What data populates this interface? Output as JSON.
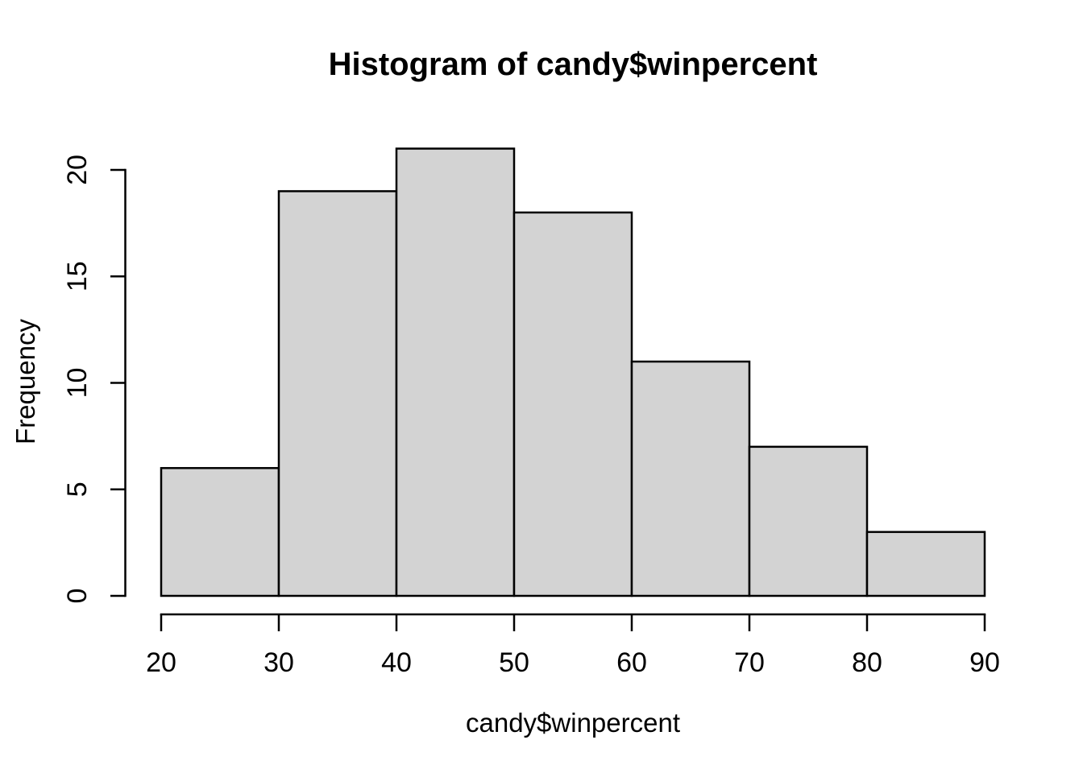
{
  "chart_data": {
    "type": "bar",
    "subtype": "histogram",
    "title": "Histogram of candy$winpercent",
    "xlabel": "candy$winpercent",
    "ylabel": "Frequency",
    "breaks": [
      20,
      30,
      40,
      50,
      60,
      70,
      80,
      90
    ],
    "counts": [
      6,
      19,
      21,
      18,
      11,
      7,
      3
    ],
    "categories": [
      "20-30",
      "30-40",
      "40-50",
      "50-60",
      "60-70",
      "70-80",
      "80-90"
    ],
    "values": [
      6,
      19,
      21,
      18,
      11,
      7,
      3
    ],
    "x_ticks": [
      20,
      30,
      40,
      50,
      60,
      70,
      80,
      90
    ],
    "y_ticks": [
      0,
      5,
      10,
      15,
      20
    ],
    "xlim": [
      20,
      90
    ],
    "ylim": [
      0,
      21
    ],
    "grid": false,
    "legend": null,
    "colors": {
      "bar_fill": "#D3D3D3",
      "bar_border": "#000000",
      "axis": "#000000",
      "text": "#000000",
      "background": "#FFFFFF"
    }
  }
}
